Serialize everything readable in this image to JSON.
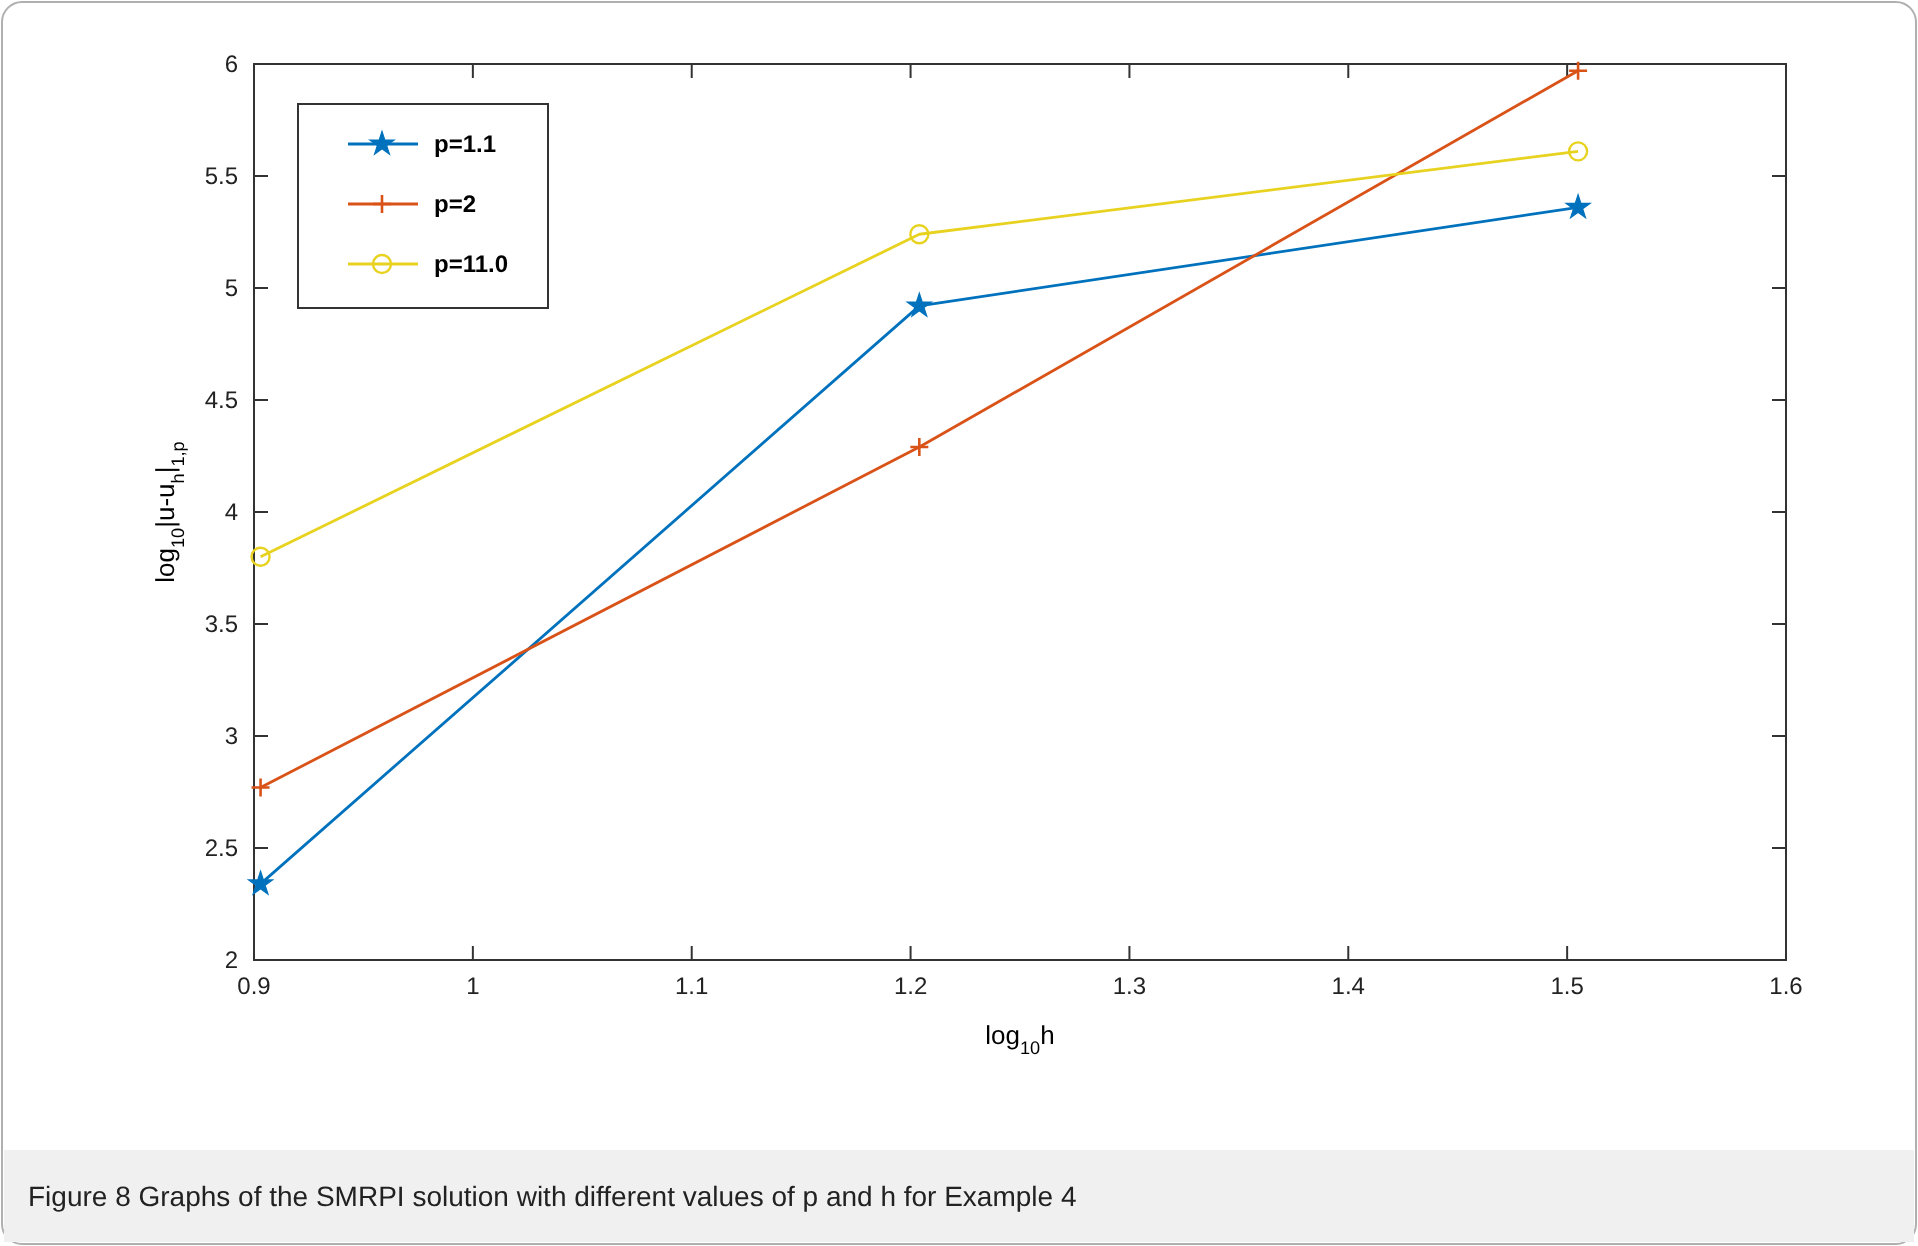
{
  "chart_data": {
    "type": "line",
    "xlabel": "log$_{10}$h",
    "ylabel": "log$_{10}$|u-u$_{h}$|$_{1,p}$",
    "x": [
      0.903,
      1.204,
      1.505
    ],
    "series": [
      {
        "name": "p=1.1",
        "color": "#0072bd",
        "marker": "star",
        "values": [
          2.34,
          4.92,
          5.36
        ]
      },
      {
        "name": "p=2",
        "color": "#d95319",
        "marker": "cross",
        "values": [
          2.77,
          4.29,
          5.97
        ]
      },
      {
        "name": "p=11.0",
        "color": "#e8d220",
        "marker": "circle",
        "values": [
          3.8,
          5.24,
          5.61
        ]
      }
    ],
    "xlim": [
      0.9,
      1.6
    ],
    "xticks": [
      0.9,
      1,
      1.1,
      1.2,
      1.3,
      1.4,
      1.5,
      1.6
    ],
    "ylim": [
      2,
      6
    ],
    "yticks": [
      2,
      2.5,
      3,
      3.5,
      4,
      4.5,
      5,
      5.5,
      6
    ],
    "grid": false,
    "legend": "top left",
    "line_style": "solid",
    "annotations": [
      "Figure 8  Graphs of the SMRPI solution with different values of p and h for Example 4"
    ]
  }
}
